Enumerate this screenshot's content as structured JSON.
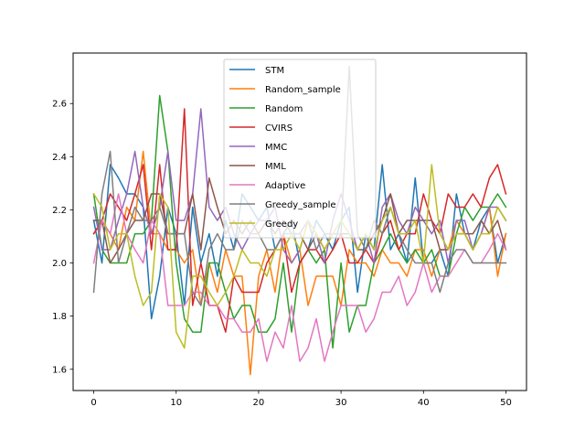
{
  "chart_data": {
    "type": "line",
    "title": "",
    "xlabel": "",
    "ylabel": "",
    "xlim": [
      -2.5,
      52.5
    ],
    "ylim": [
      1.52,
      2.79
    ],
    "xticks": [
      0,
      10,
      20,
      30,
      40,
      50
    ],
    "xtick_labels": [
      "0",
      "10",
      "20",
      "30",
      "40",
      "50"
    ],
    "yticks": [
      1.6,
      1.8,
      2.0,
      2.2,
      2.4,
      2.6
    ],
    "ytick_labels": [
      "1.6",
      "1.8",
      "2.0",
      "2.2",
      "2.4",
      "2.6"
    ],
    "grid": false,
    "legend_position": "upper center",
    "x": [
      0,
      1,
      2,
      3,
      4,
      5,
      6,
      7,
      8,
      9,
      10,
      11,
      12,
      13,
      14,
      15,
      16,
      17,
      18,
      19,
      20,
      21,
      22,
      23,
      24,
      25,
      26,
      27,
      28,
      29,
      30,
      31,
      32,
      33,
      34,
      35,
      36,
      37,
      38,
      39,
      40,
      41,
      42,
      43,
      44,
      45,
      46,
      47,
      48,
      49,
      50
    ],
    "series": [
      {
        "name": "STM",
        "color": "#1f77b4",
        "values": [
          2.16,
          2.0,
          2.37,
          2.32,
          2.26,
          2.26,
          2.21,
          1.79,
          1.95,
          2.21,
          2.11,
          1.84,
          2.21,
          2.0,
          2.11,
          1.95,
          2.16,
          2.05,
          2.26,
          2.21,
          2.16,
          2.21,
          2.05,
          2.11,
          2.16,
          2.0,
          2.05,
          2.16,
          2.11,
          2.05,
          2.16,
          2.21,
          1.89,
          2.11,
          2.05,
          2.37,
          2.05,
          2.11,
          2.0,
          2.32,
          2.0,
          2.0,
          2.05,
          1.95,
          2.26,
          2.11,
          2.05,
          2.16,
          2.21,
          2.0,
          2.11
        ]
      },
      {
        "name": "Random_sample",
        "color": "#ff7f0e",
        "values": [
          2.11,
          2.16,
          2.11,
          2.05,
          2.21,
          2.16,
          2.42,
          2.11,
          2.11,
          2.05,
          2.05,
          2.0,
          2.05,
          1.84,
          2.0,
          1.89,
          2.05,
          1.95,
          1.95,
          1.58,
          1.95,
          2.05,
          1.89,
          2.11,
          2.0,
          2.05,
          1.84,
          1.95,
          1.95,
          1.95,
          1.84,
          2.05,
          2.0,
          2.0,
          1.95,
          2.05,
          2.0,
          2.0,
          1.95,
          2.05,
          2.05,
          1.95,
          2.05,
          2.05,
          2.16,
          2.11,
          2.05,
          2.11,
          2.21,
          1.95,
          2.11
        ]
      },
      {
        "name": "Random",
        "color": "#2ca02c",
        "values": [
          2.26,
          2.05,
          2.0,
          2.0,
          2.0,
          2.11,
          2.11,
          2.16,
          2.63,
          2.42,
          2.0,
          1.79,
          1.74,
          1.74,
          2.0,
          2.0,
          1.89,
          1.79,
          1.84,
          1.84,
          1.74,
          1.74,
          1.79,
          2.0,
          1.74,
          2.0,
          2.05,
          2.0,
          2.05,
          1.68,
          2.0,
          1.74,
          1.84,
          1.84,
          2.0,
          2.05,
          2.11,
          2.05,
          2.0,
          2.05,
          2.0,
          2.05,
          1.95,
          1.95,
          2.11,
          2.21,
          2.16,
          2.21,
          2.21,
          2.26,
          2.21
        ]
      },
      {
        "name": "CVIRS",
        "color": "#d62728",
        "values": [
          2.11,
          2.16,
          2.26,
          2.21,
          2.16,
          2.26,
          2.37,
          2.05,
          2.37,
          2.05,
          2.05,
          2.58,
          1.84,
          2.0,
          1.84,
          1.84,
          1.74,
          1.95,
          1.89,
          1.89,
          1.89,
          2.0,
          2.05,
          2.11,
          1.89,
          2.0,
          2.05,
          2.05,
          2.0,
          2.05,
          2.11,
          2.0,
          2.0,
          2.05,
          2.0,
          2.11,
          2.16,
          2.05,
          2.11,
          2.11,
          2.26,
          2.16,
          2.11,
          2.26,
          2.21,
          2.21,
          2.26,
          2.21,
          2.32,
          2.37,
          2.26
        ]
      },
      {
        "name": "MMC",
        "color": "#9467bd",
        "values": [
          2.21,
          2.05,
          2.05,
          2.16,
          2.26,
          2.42,
          2.21,
          2.11,
          2.21,
          2.42,
          2.16,
          2.16,
          2.26,
          2.58,
          2.21,
          2.16,
          2.21,
          2.11,
          2.05,
          2.11,
          2.16,
          2.16,
          2.21,
          2.05,
          2.0,
          2.05,
          2.16,
          2.11,
          2.0,
          2.16,
          2.26,
          2.16,
          2.05,
          2.11,
          2.0,
          2.21,
          2.26,
          2.16,
          2.11,
          2.21,
          2.16,
          2.11,
          2.16,
          2.0,
          2.16,
          2.16,
          2.05,
          2.11,
          2.21,
          2.21,
          2.16
        ]
      },
      {
        "name": "MML",
        "color": "#8c564b",
        "values": [
          2.16,
          2.16,
          2.0,
          2.05,
          2.11,
          2.16,
          2.16,
          2.26,
          2.26,
          2.11,
          2.11,
          2.11,
          2.26,
          2.05,
          2.32,
          2.21,
          2.11,
          2.16,
          2.11,
          2.16,
          2.11,
          2.16,
          2.11,
          2.16,
          2.11,
          2.11,
          2.05,
          2.11,
          2.05,
          2.11,
          2.11,
          2.11,
          2.05,
          2.05,
          2.11,
          2.16,
          2.26,
          2.11,
          2.16,
          2.16,
          2.16,
          2.16,
          2.05,
          2.05,
          2.11,
          2.11,
          2.11,
          2.16,
          2.11,
          2.16,
          2.05
        ]
      },
      {
        "name": "Adaptive",
        "color": "#e377c2",
        "values": [
          2.0,
          2.16,
          2.11,
          2.26,
          2.11,
          2.05,
          2.0,
          2.16,
          2.11,
          1.84,
          1.84,
          1.84,
          1.89,
          1.89,
          1.84,
          1.84,
          1.79,
          1.79,
          1.74,
          1.74,
          1.79,
          1.63,
          1.74,
          1.68,
          1.84,
          1.63,
          1.68,
          1.79,
          1.63,
          1.74,
          1.84,
          1.84,
          1.84,
          1.74,
          1.79,
          1.89,
          1.89,
          1.95,
          1.84,
          1.89,
          2.0,
          1.89,
          1.95,
          1.95,
          2.0,
          2.05,
          2.0,
          2.0,
          2.05,
          2.11,
          2.05
        ]
      },
      {
        "name": "Greedy_sample",
        "color": "#7f7f7f",
        "values": [
          1.89,
          2.26,
          2.42,
          2.0,
          2.11,
          2.21,
          2.16,
          2.16,
          2.21,
          2.11,
          2.11,
          2.11,
          1.89,
          1.84,
          2.05,
          2.11,
          2.05,
          2.05,
          2.16,
          2.11,
          2.11,
          2.05,
          2.05,
          2.11,
          2.11,
          2.11,
          2.16,
          2.05,
          2.11,
          2.11,
          2.11,
          2.74,
          2.11,
          2.05,
          2.16,
          2.11,
          2.21,
          2.11,
          2.05,
          2.0,
          2.0,
          2.0,
          1.89,
          2.0,
          2.05,
          2.05,
          2.0,
          2.0,
          2.0,
          2.0,
          2.0
        ]
      },
      {
        "name": "Greedy",
        "color": "#bcbd22",
        "values": [
          2.26,
          2.21,
          2.05,
          2.11,
          2.11,
          1.95,
          1.84,
          1.89,
          2.26,
          2.21,
          1.74,
          1.68,
          1.95,
          1.95,
          1.89,
          1.84,
          1.89,
          1.95,
          2.05,
          2.0,
          2.0,
          1.95,
          2.05,
          2.05,
          2.11,
          2.05,
          2.16,
          2.11,
          2.05,
          2.11,
          2.16,
          2.11,
          2.05,
          2.11,
          2.05,
          2.16,
          2.21,
          2.11,
          2.11,
          2.16,
          2.0,
          2.37,
          2.11,
          2.05,
          2.11,
          2.11,
          2.05,
          2.11,
          2.11,
          2.21,
          2.16
        ]
      }
    ]
  }
}
